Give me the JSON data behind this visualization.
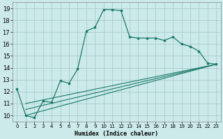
{
  "title": "",
  "xlabel": "Humidex (Indice chaleur)",
  "ylabel": "",
  "bg_color": "#cceaea",
  "grid_color": "#aacccc",
  "line_color": "#1a7a6a",
  "xlim": [
    -0.5,
    23.5
  ],
  "ylim": [
    9.5,
    19.5
  ],
  "xticks": [
    0,
    1,
    2,
    3,
    4,
    5,
    6,
    7,
    8,
    9,
    10,
    11,
    12,
    13,
    14,
    15,
    16,
    17,
    18,
    19,
    20,
    21,
    22,
    23
  ],
  "yticks": [
    10,
    11,
    12,
    13,
    14,
    15,
    16,
    17,
    18,
    19
  ],
  "series1_x": [
    0,
    1,
    2,
    3,
    4,
    5,
    6,
    7,
    8,
    9,
    10,
    11,
    12,
    13,
    14,
    15,
    16,
    17,
    18,
    19,
    20,
    21,
    22,
    23
  ],
  "series1_y": [
    12.2,
    10.0,
    9.8,
    11.2,
    11.1,
    12.9,
    12.7,
    13.9,
    17.1,
    17.4,
    18.9,
    18.9,
    18.8,
    16.6,
    16.5,
    16.5,
    16.5,
    16.3,
    16.6,
    16.0,
    15.8,
    15.4,
    14.4,
    14.3
  ],
  "series2_x": [
    1,
    23
  ],
  "series2_y": [
    10.0,
    14.3
  ],
  "series3_x": [
    1,
    23
  ],
  "series3_y": [
    10.5,
    14.3
  ],
  "series4_x": [
    1,
    23
  ],
  "series4_y": [
    11.0,
    14.3
  ]
}
